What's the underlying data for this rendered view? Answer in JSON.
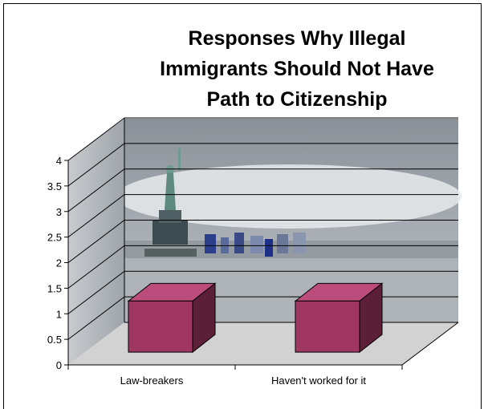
{
  "chart_data": {
    "type": "bar",
    "title_lines": [
      "Responses Why Illegal",
      "Immigrants Should Not Have",
      "Path to Citizenship"
    ],
    "categories": [
      "Law-breakers",
      "Haven't worked for it"
    ],
    "values": [
      1,
      1
    ],
    "ylim": [
      0,
      4
    ],
    "yticks": [
      "0",
      "0.5",
      "1",
      "1.5",
      "2",
      "2.5",
      "3",
      "3.5",
      "4"
    ],
    "xlabel": "",
    "ylabel": "",
    "grid": true,
    "legend": "none",
    "three_d": true,
    "background": "Statue of Liberty and New York skyline photo",
    "colors": {
      "bar_front": "#a03763",
      "bar_top": "#bb4c7c",
      "bar_side": "#5c1f38",
      "bar_edge": "#000000",
      "grid": "#000000",
      "sky": "#9aa1a8",
      "water": "#b9bdc1",
      "floor": "#c9c9c9"
    }
  }
}
